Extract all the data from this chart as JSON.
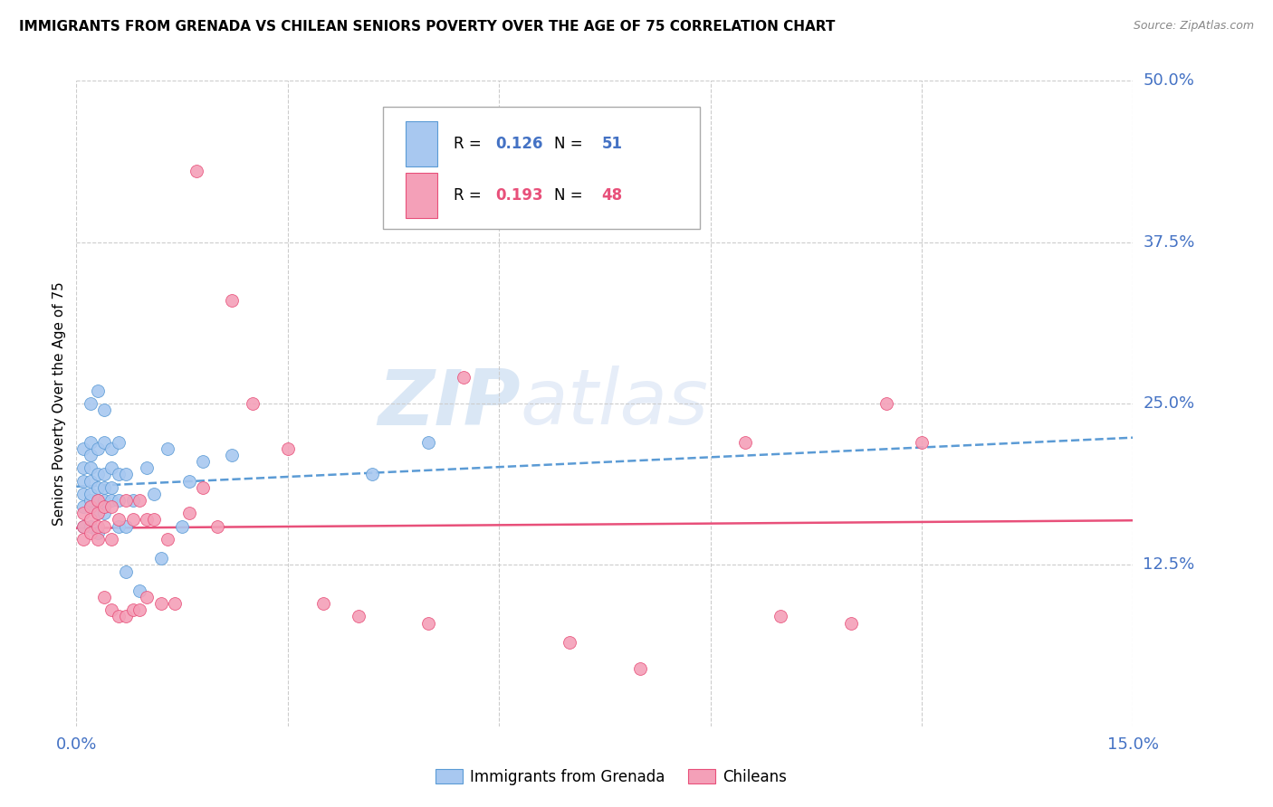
{
  "title": "IMMIGRANTS FROM GRENADA VS CHILEAN SENIORS POVERTY OVER THE AGE OF 75 CORRELATION CHART",
  "source": "Source: ZipAtlas.com",
  "ylabel": "Seniors Poverty Over the Age of 75",
  "xlim": [
    0.0,
    0.15
  ],
  "ylim": [
    0.0,
    0.5
  ],
  "xticks": [
    0.0,
    0.03,
    0.06,
    0.09,
    0.12,
    0.15
  ],
  "xtick_labels": [
    "0.0%",
    "",
    "",
    "",
    "",
    "15.0%"
  ],
  "ytick_labels": [
    "12.5%",
    "25.0%",
    "37.5%",
    "50.0%"
  ],
  "yticks": [
    0.125,
    0.25,
    0.375,
    0.5
  ],
  "color_grenada": "#A8C8F0",
  "color_chilean": "#F4A0B8",
  "color_trend_grenada": "#5B9BD5",
  "color_trend_chilean": "#E8507A",
  "watermark_zip": "ZIP",
  "watermark_atlas": "atlas",
  "legend_r1": "R = ",
  "legend_r1_val": "0.126",
  "legend_n1": "N = ",
  "legend_n1_val": "51",
  "legend_r2": "R = ",
  "legend_r2_val": "0.193",
  "legend_n2": "N = ",
  "legend_n2_val": "48",
  "legend_label_grenada": "Immigrants from Grenada",
  "legend_label_chilean": "Chileans",
  "grenada_x": [
    0.001,
    0.001,
    0.001,
    0.001,
    0.001,
    0.001,
    0.002,
    0.002,
    0.002,
    0.002,
    0.002,
    0.002,
    0.002,
    0.002,
    0.002,
    0.003,
    0.003,
    0.003,
    0.003,
    0.003,
    0.003,
    0.003,
    0.004,
    0.004,
    0.004,
    0.004,
    0.004,
    0.004,
    0.005,
    0.005,
    0.005,
    0.005,
    0.006,
    0.006,
    0.006,
    0.006,
    0.007,
    0.007,
    0.007,
    0.008,
    0.009,
    0.01,
    0.011,
    0.012,
    0.013,
    0.015,
    0.016,
    0.018,
    0.022,
    0.042,
    0.05
  ],
  "grenada_y": [
    0.155,
    0.17,
    0.18,
    0.19,
    0.2,
    0.215,
    0.155,
    0.17,
    0.175,
    0.18,
    0.19,
    0.2,
    0.21,
    0.22,
    0.25,
    0.15,
    0.165,
    0.175,
    0.185,
    0.195,
    0.215,
    0.26,
    0.165,
    0.175,
    0.185,
    0.195,
    0.22,
    0.245,
    0.175,
    0.185,
    0.2,
    0.215,
    0.155,
    0.175,
    0.195,
    0.22,
    0.12,
    0.155,
    0.195,
    0.175,
    0.105,
    0.2,
    0.18,
    0.13,
    0.215,
    0.155,
    0.19,
    0.205,
    0.21,
    0.195,
    0.22
  ],
  "chilean_x": [
    0.001,
    0.001,
    0.001,
    0.002,
    0.002,
    0.002,
    0.003,
    0.003,
    0.003,
    0.003,
    0.004,
    0.004,
    0.004,
    0.005,
    0.005,
    0.005,
    0.006,
    0.006,
    0.007,
    0.007,
    0.008,
    0.008,
    0.009,
    0.009,
    0.01,
    0.01,
    0.011,
    0.012,
    0.013,
    0.014,
    0.016,
    0.017,
    0.018,
    0.02,
    0.022,
    0.025,
    0.03,
    0.035,
    0.04,
    0.05,
    0.055,
    0.07,
    0.08,
    0.095,
    0.1,
    0.11,
    0.115,
    0.12
  ],
  "chilean_y": [
    0.145,
    0.155,
    0.165,
    0.15,
    0.16,
    0.17,
    0.145,
    0.155,
    0.165,
    0.175,
    0.1,
    0.155,
    0.17,
    0.09,
    0.145,
    0.17,
    0.085,
    0.16,
    0.085,
    0.175,
    0.09,
    0.16,
    0.09,
    0.175,
    0.1,
    0.16,
    0.16,
    0.095,
    0.145,
    0.095,
    0.165,
    0.43,
    0.185,
    0.155,
    0.33,
    0.25,
    0.215,
    0.095,
    0.085,
    0.08,
    0.27,
    0.065,
    0.045,
    0.22,
    0.085,
    0.08,
    0.25,
    0.22
  ]
}
